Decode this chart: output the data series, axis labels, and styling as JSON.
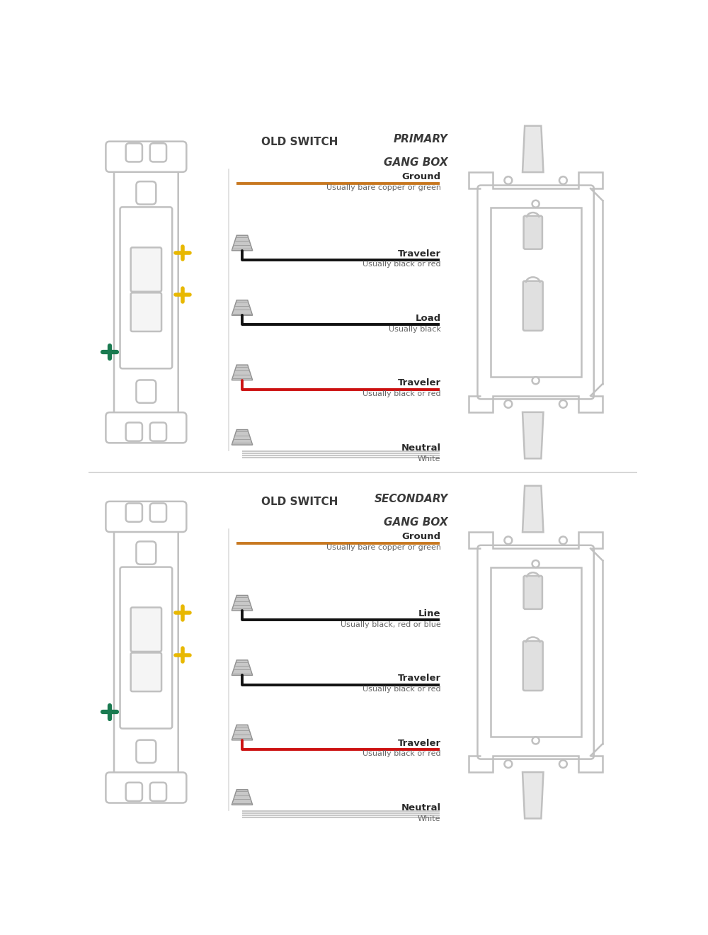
{
  "bg_color": "#ffffff",
  "divider_color": "#d0d0d0",
  "switch_color": "#c0c0c0",
  "box_color": "#c0c0c0",
  "yellow_terminal_color": "#e8b800",
  "green_terminal_color": "#1a7a50",
  "sections": [
    {
      "title_line1": "PRIMARY",
      "title_line2": "GANG BOX",
      "subtitle": "OLD SWITCH",
      "wires": [
        {
          "label": "Ground",
          "sublabel": "Usually bare copper or green",
          "color": "#c87820",
          "type": "straight"
        },
        {
          "label": "Traveler",
          "sublabel": "Usually black or red",
          "color": "#111111",
          "type": "bent"
        },
        {
          "label": "Load",
          "sublabel": "Usually black",
          "color": "#111111",
          "type": "bent"
        },
        {
          "label": "Traveler",
          "sublabel": "Usually black or red",
          "color": "#cc1111",
          "type": "bent_red"
        },
        {
          "label": "Neutral",
          "sublabel": "White",
          "color": "#bbbbbb",
          "type": "multi"
        }
      ]
    },
    {
      "title_line1": "SECONDARY",
      "title_line2": "GANG BOX",
      "subtitle": "OLD SWITCH",
      "wires": [
        {
          "label": "Ground",
          "sublabel": "Usually bare copper or green",
          "color": "#c87820",
          "type": "straight"
        },
        {
          "label": "Line",
          "sublabel": "Usually black, red or blue",
          "color": "#111111",
          "type": "bent"
        },
        {
          "label": "Traveler",
          "sublabel": "Usually black or red",
          "color": "#111111",
          "type": "bent"
        },
        {
          "label": "Traveler",
          "sublabel": "Usually black or red",
          "color": "#cc1111",
          "type": "bent_red"
        },
        {
          "label": "Neutral",
          "sublabel": "White",
          "color": "#bbbbbb",
          "type": "multi"
        }
      ]
    }
  ]
}
